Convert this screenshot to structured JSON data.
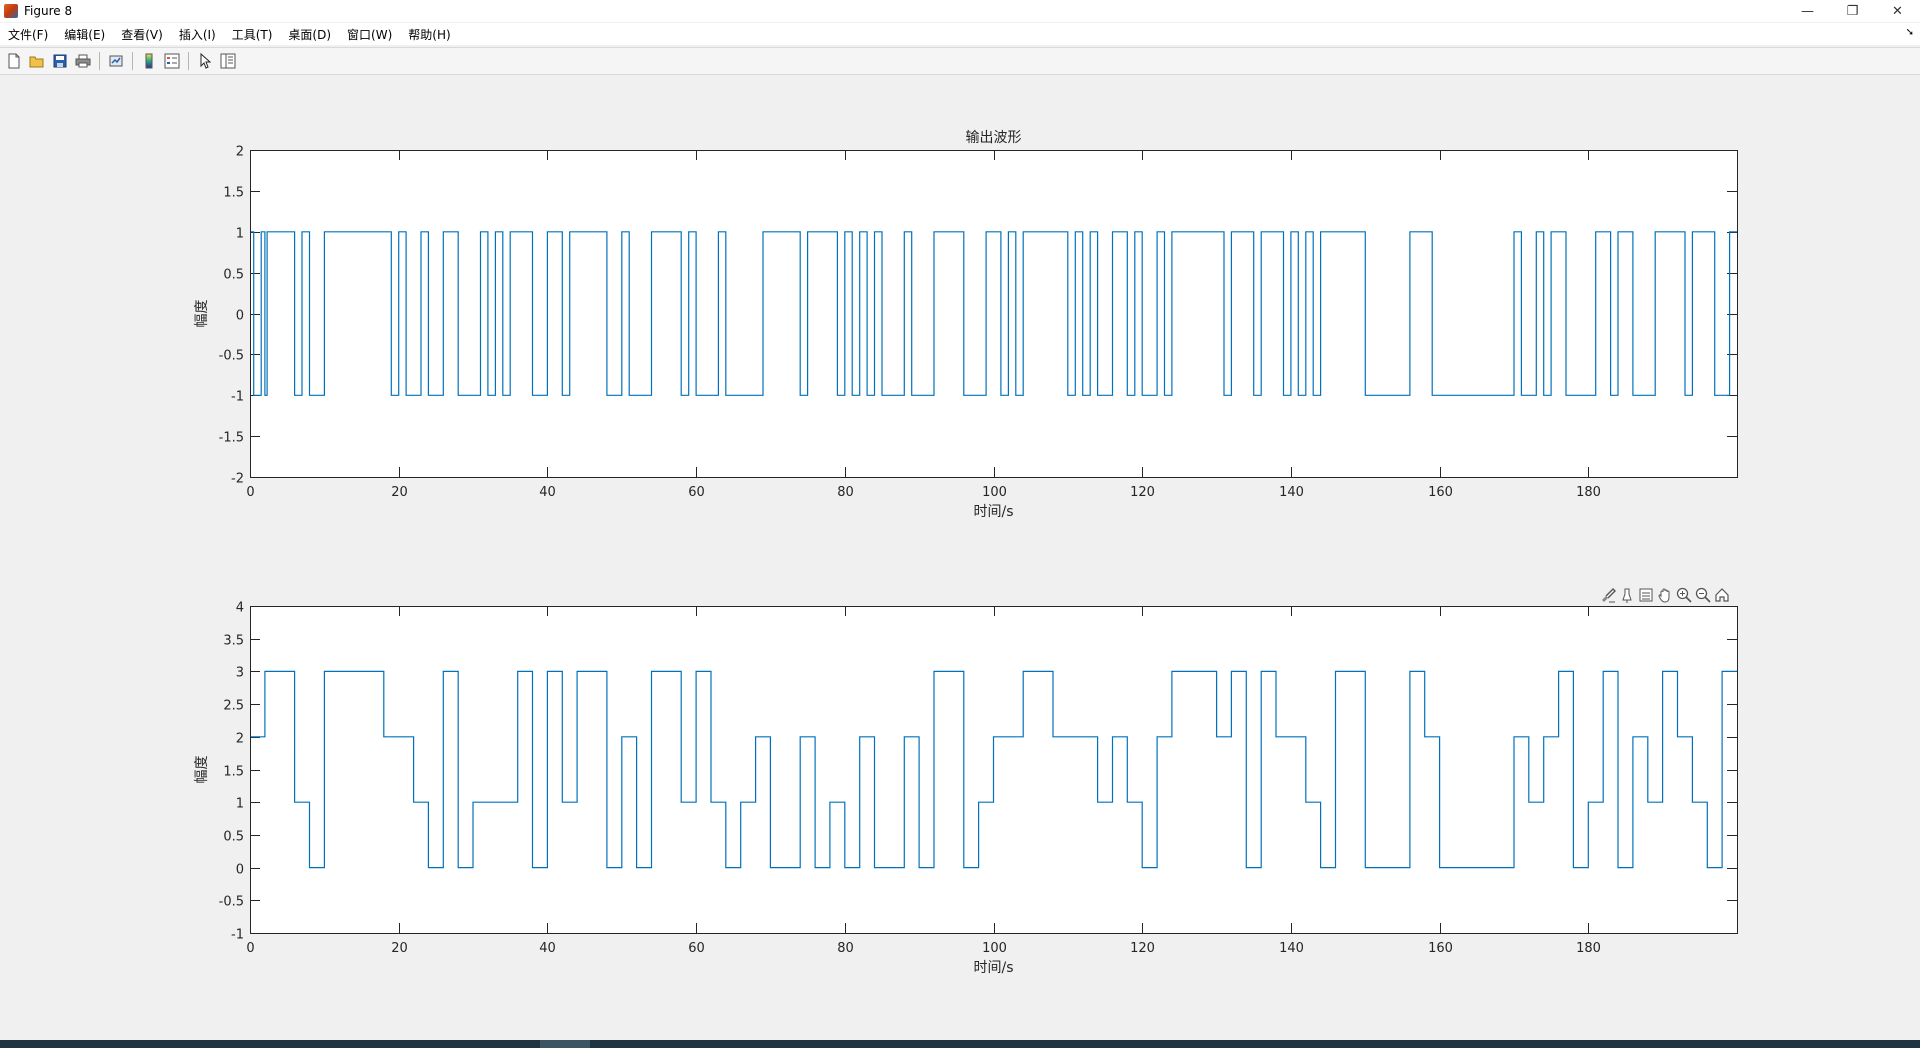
{
  "window": {
    "title": "Figure 8",
    "controls": [
      "—",
      "❐",
      "✕"
    ]
  },
  "menu": {
    "items": [
      "文件(F)",
      "编辑(E)",
      "查看(V)",
      "插入(I)",
      "工具(T)",
      "桌面(D)",
      "窗口(W)",
      "帮助(H)"
    ]
  },
  "toolbar": {
    "icons": [
      "new-figure-icon",
      "open-file-icon",
      "save-icon",
      "print-icon",
      "link-plot-icon",
      "colorbar-icon",
      "legend-icon",
      "edit-plot-arrow-icon",
      "property-inspector-icon"
    ]
  },
  "axes_toolbar": {
    "icons": [
      "brush-icon",
      "data-tips-icon",
      "export-icon",
      "pan-icon",
      "zoom-in-icon",
      "zoom-out-icon",
      "restore-view-icon"
    ]
  },
  "colors": {
    "line": "#0072bd",
    "axes_bg": "#ffffff",
    "figure_bg": "#f0f0f0"
  },
  "chart_data": [
    {
      "type": "line",
      "step": true,
      "title": "输出波形",
      "xlabel": "时间/s",
      "ylabel": "幅度",
      "xlim": [
        0,
        200
      ],
      "ylim": [
        -2,
        2
      ],
      "xticks": [
        0,
        20,
        40,
        60,
        80,
        100,
        120,
        140,
        160,
        180
      ],
      "yticks": [
        -2,
        -1.5,
        -1,
        -0.5,
        0,
        0.5,
        1,
        1.5,
        2
      ],
      "ytick_labels": [
        "-2",
        "-1.5",
        "-1",
        "-0.5",
        "0",
        "0.5",
        "1",
        "1.5",
        "2"
      ],
      "grid": false,
      "transitions": [
        [
          0,
          1
        ],
        [
          0.5,
          -1
        ],
        [
          1.5,
          1
        ],
        [
          2,
          -1
        ],
        [
          2.3,
          1
        ],
        [
          6,
          -1
        ],
        [
          7,
          1
        ],
        [
          8,
          -1
        ],
        [
          10,
          1
        ],
        [
          19,
          -1
        ],
        [
          20,
          1
        ],
        [
          21,
          -1
        ],
        [
          23,
          1
        ],
        [
          24,
          -1
        ],
        [
          26,
          1
        ],
        [
          28,
          -1
        ],
        [
          31,
          1
        ],
        [
          32,
          -1
        ],
        [
          33,
          1
        ],
        [
          34,
          -1
        ],
        [
          35,
          1
        ],
        [
          38,
          -1
        ],
        [
          40,
          1
        ],
        [
          42,
          -1
        ],
        [
          43,
          1
        ],
        [
          48,
          -1
        ],
        [
          50,
          1
        ],
        [
          51,
          -1
        ],
        [
          54,
          1
        ],
        [
          58,
          -1
        ],
        [
          59,
          1
        ],
        [
          60,
          -1
        ],
        [
          63,
          1
        ],
        [
          64,
          -1
        ],
        [
          69,
          1
        ],
        [
          74,
          -1
        ],
        [
          75,
          1
        ],
        [
          79,
          -1
        ],
        [
          80,
          1
        ],
        [
          81,
          -1
        ],
        [
          82,
          1
        ],
        [
          83,
          -1
        ],
        [
          84,
          1
        ],
        [
          85,
          -1
        ],
        [
          88,
          1
        ],
        [
          89,
          -1
        ],
        [
          92,
          1
        ],
        [
          96,
          -1
        ],
        [
          99,
          1
        ],
        [
          101,
          -1
        ],
        [
          102,
          1
        ],
        [
          103,
          -1
        ],
        [
          104,
          1
        ],
        [
          110,
          -1
        ],
        [
          111,
          1
        ],
        [
          112,
          -1
        ],
        [
          113,
          1
        ],
        [
          114,
          -1
        ],
        [
          116,
          1
        ],
        [
          118,
          -1
        ],
        [
          119,
          1
        ],
        [
          120,
          -1
        ],
        [
          122,
          1
        ],
        [
          123,
          -1
        ],
        [
          124,
          1
        ],
        [
          131,
          -1
        ],
        [
          132,
          1
        ],
        [
          135,
          -1
        ],
        [
          136,
          1
        ],
        [
          139,
          -1
        ],
        [
          140,
          1
        ],
        [
          141,
          -1
        ],
        [
          142,
          1
        ],
        [
          143,
          -1
        ],
        [
          144,
          1
        ],
        [
          150,
          -1
        ],
        [
          156,
          1
        ],
        [
          159,
          -1
        ],
        [
          170,
          1
        ],
        [
          171,
          -1
        ],
        [
          173,
          1
        ],
        [
          174,
          -1
        ],
        [
          175,
          1
        ],
        [
          177,
          -1
        ],
        [
          181,
          1
        ],
        [
          183,
          -1
        ],
        [
          184,
          1
        ],
        [
          186,
          -1
        ],
        [
          189,
          1
        ],
        [
          193,
          -1
        ],
        [
          194,
          1
        ],
        [
          197,
          -1
        ],
        [
          199,
          1
        ],
        [
          200,
          1
        ]
      ]
    },
    {
      "type": "line",
      "step": true,
      "title": "",
      "xlabel": "时间/s",
      "ylabel": "幅度",
      "xlim": [
        0,
        200
      ],
      "ylim": [
        -1,
        4
      ],
      "xticks": [
        0,
        20,
        40,
        60,
        80,
        100,
        120,
        140,
        160,
        180
      ],
      "yticks": [
        -1,
        -0.5,
        0,
        0.5,
        1,
        1.5,
        2,
        2.5,
        3,
        3.5,
        4
      ],
      "ytick_labels": [
        "-1",
        "-0.5",
        "0",
        "0.5",
        "1",
        "1.5",
        "2",
        "2.5",
        "3",
        "3.5",
        "4"
      ],
      "grid": false,
      "transitions": [
        [
          0,
          2
        ],
        [
          2,
          3
        ],
        [
          6,
          1
        ],
        [
          8,
          0
        ],
        [
          10,
          3
        ],
        [
          18,
          2
        ],
        [
          22,
          1
        ],
        [
          24,
          0
        ],
        [
          26,
          3
        ],
        [
          28,
          0
        ],
        [
          30,
          1
        ],
        [
          36,
          3
        ],
        [
          38,
          0
        ],
        [
          40,
          3
        ],
        [
          42,
          1
        ],
        [
          44,
          3
        ],
        [
          48,
          0
        ],
        [
          50,
          2
        ],
        [
          52,
          0
        ],
        [
          54,
          3
        ],
        [
          58,
          1
        ],
        [
          60,
          3
        ],
        [
          62,
          1
        ],
        [
          64,
          0
        ],
        [
          66,
          1
        ],
        [
          68,
          2
        ],
        [
          70,
          0
        ],
        [
          74,
          2
        ],
        [
          76,
          0
        ],
        [
          78,
          1
        ],
        [
          80,
          0
        ],
        [
          82,
          2
        ],
        [
          84,
          0
        ],
        [
          88,
          2
        ],
        [
          90,
          0
        ],
        [
          92,
          3
        ],
        [
          96,
          0
        ],
        [
          98,
          1
        ],
        [
          100,
          2
        ],
        [
          104,
          3
        ],
        [
          108,
          2
        ],
        [
          114,
          1
        ],
        [
          116,
          2
        ],
        [
          118,
          1
        ],
        [
          120,
          0
        ],
        [
          122,
          2
        ],
        [
          124,
          3
        ],
        [
          130,
          2
        ],
        [
          132,
          3
        ],
        [
          134,
          0
        ],
        [
          136,
          3
        ],
        [
          138,
          2
        ],
        [
          142,
          1
        ],
        [
          144,
          0
        ],
        [
          146,
          3
        ],
        [
          150,
          0
        ],
        [
          156,
          3
        ],
        [
          158,
          2
        ],
        [
          160,
          0
        ],
        [
          170,
          2
        ],
        [
          172,
          1
        ],
        [
          174,
          2
        ],
        [
          176,
          3
        ],
        [
          178,
          0
        ],
        [
          180,
          1
        ],
        [
          182,
          3
        ],
        [
          184,
          0
        ],
        [
          186,
          2
        ],
        [
          188,
          1
        ],
        [
          190,
          3
        ],
        [
          192,
          2
        ],
        [
          194,
          1
        ],
        [
          196,
          0
        ],
        [
          198,
          3
        ],
        [
          200,
          3
        ]
      ]
    }
  ]
}
